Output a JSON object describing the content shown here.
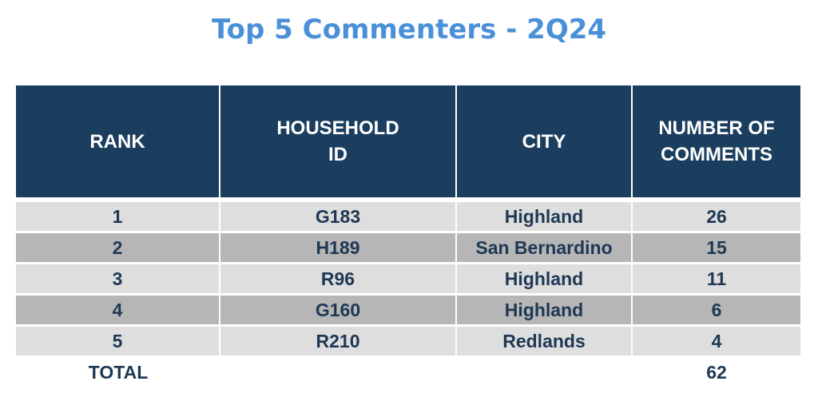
{
  "title": "Top 5 Commenters - 2Q24",
  "table": {
    "headers": [
      "RANK",
      "HOUSEHOLD\nID",
      "CITY",
      "NUMBER OF\nCOMMENTS"
    ],
    "rows": [
      {
        "rank": "1",
        "household_id": "G183",
        "city": "Highland",
        "comments": "26"
      },
      {
        "rank": "2",
        "household_id": "H189",
        "city": "San Bernardino",
        "comments": "15"
      },
      {
        "rank": "3",
        "household_id": "R96",
        "city": "Highland",
        "comments": "11"
      },
      {
        "rank": "4",
        "household_id": "G160",
        "city": "Highland",
        "comments": "6"
      },
      {
        "rank": "5",
        "household_id": "R210",
        "city": "Redlands",
        "comments": "4"
      }
    ],
    "total": {
      "label": "TOTAL",
      "comments": "62"
    }
  },
  "colors": {
    "title": "#4a90d9",
    "header_bg": "#1b3e5e",
    "row_light": "#dedede",
    "row_dark": "#b6b6b6",
    "text": "#1e3854"
  }
}
